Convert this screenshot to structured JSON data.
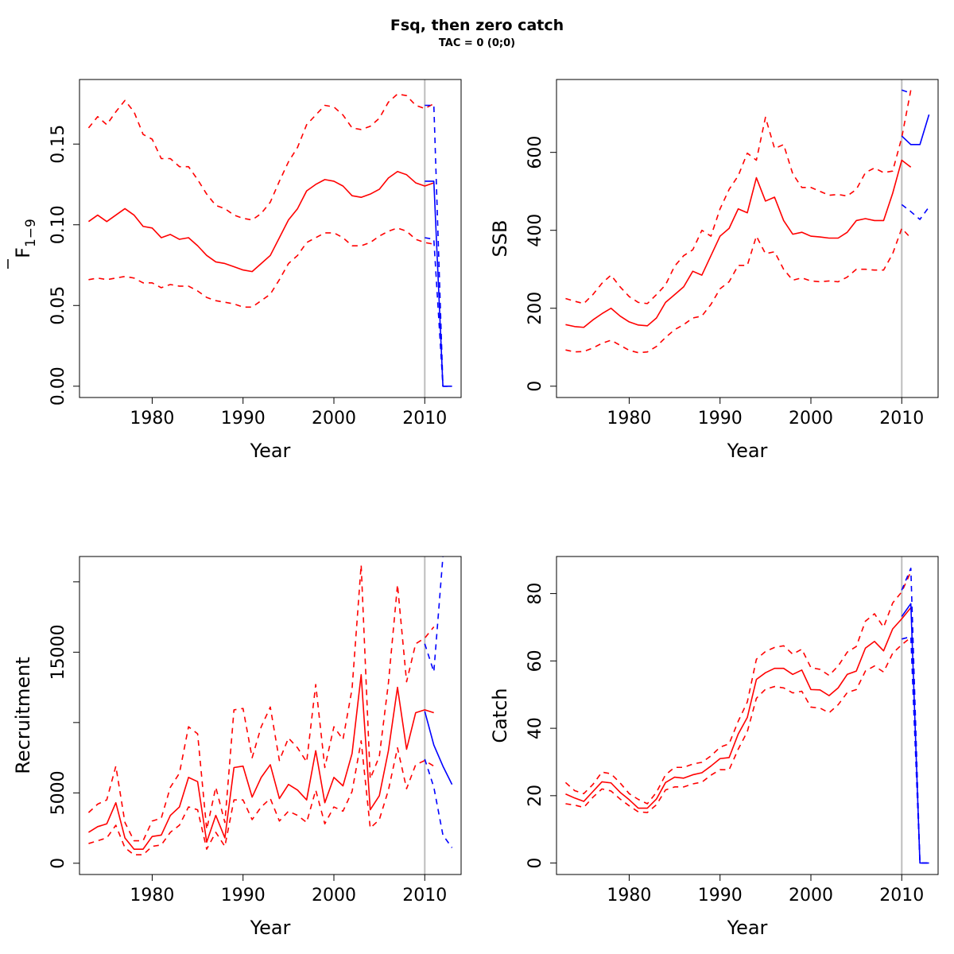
{
  "figure": {
    "title": "Fsq, then zero catch",
    "subtitle": "TAC = 0 (0;0)"
  },
  "colors": {
    "estimate": "#ff0000",
    "forecast": "#0000ff",
    "reference_line": "#bebebe"
  },
  "chart_data": [
    {
      "type": "line",
      "id": "fbar",
      "xlabel": "Year",
      "ylabel_main": "F",
      "ylabel_sub": "1−9",
      "ylabel_bar": true,
      "xlim": [
        1972,
        2014
      ],
      "ylim": [
        -0.007,
        0.19
      ],
      "xticks": [
        1980,
        1990,
        2000,
        2010
      ],
      "yticks": [
        0.0,
        0.05,
        0.1,
        0.15
      ],
      "ytick_labels": [
        "0.00",
        "0.05",
        "0.10",
        "0.15"
      ],
      "vline_x": 2010,
      "estimate": {
        "x": [
          1973,
          1974,
          1975,
          1976,
          1977,
          1978,
          1979,
          1980,
          1981,
          1982,
          1983,
          1984,
          1985,
          1986,
          1987,
          1988,
          1989,
          1990,
          1991,
          1992,
          1993,
          1994,
          1995,
          1996,
          1997,
          1998,
          1999,
          2000,
          2001,
          2002,
          2003,
          2004,
          2005,
          2006,
          2007,
          2008,
          2009,
          2010,
          2011
        ],
        "mid": [
          0.102,
          0.106,
          0.102,
          0.106,
          0.11,
          0.106,
          0.099,
          0.098,
          0.092,
          0.094,
          0.091,
          0.092,
          0.087,
          0.081,
          0.077,
          0.076,
          0.074,
          0.072,
          0.071,
          0.076,
          0.081,
          0.092,
          0.103,
          0.11,
          0.121,
          0.125,
          0.128,
          0.127,
          0.124,
          0.118,
          0.117,
          0.119,
          0.122,
          0.129,
          0.133,
          0.131,
          0.126,
          0.124,
          0.126
        ],
        "low": [
          0.066,
          0.067,
          0.066,
          0.067,
          0.068,
          0.067,
          0.064,
          0.064,
          0.061,
          0.063,
          0.062,
          0.062,
          0.059,
          0.055,
          0.053,
          0.052,
          0.051,
          0.049,
          0.049,
          0.053,
          0.057,
          0.066,
          0.076,
          0.081,
          0.089,
          0.092,
          0.095,
          0.095,
          0.092,
          0.087,
          0.087,
          0.089,
          0.093,
          0.096,
          0.098,
          0.096,
          0.091,
          0.089,
          0.088
        ],
        "high": [
          0.16,
          0.167,
          0.162,
          0.17,
          0.177,
          0.17,
          0.156,
          0.153,
          0.141,
          0.141,
          0.136,
          0.136,
          0.128,
          0.119,
          0.112,
          0.11,
          0.106,
          0.104,
          0.103,
          0.107,
          0.114,
          0.127,
          0.139,
          0.148,
          0.162,
          0.168,
          0.174,
          0.173,
          0.168,
          0.16,
          0.159,
          0.161,
          0.166,
          0.176,
          0.181,
          0.18,
          0.174,
          0.172,
          0.175
        ]
      },
      "forecast": {
        "x": [
          2010,
          2011,
          2012,
          2013
        ],
        "mid": [
          0.127,
          0.127,
          0.0,
          0.0
        ],
        "low": [
          0.092,
          0.091,
          0.0,
          0.0
        ],
        "high": [
          0.174,
          0.174,
          0.0,
          0.0
        ]
      }
    },
    {
      "type": "line",
      "id": "ssb",
      "xlabel": "Year",
      "ylabel_main": "SSB",
      "ylabel_sub": "",
      "ylabel_bar": false,
      "xlim": [
        1972,
        2014
      ],
      "ylim": [
        -29,
        787
      ],
      "xticks": [
        1980,
        1990,
        2000,
        2010
      ],
      "yticks": [
        0,
        200,
        400,
        600
      ],
      "ytick_labels": [
        "0",
        "200",
        "400",
        "600"
      ],
      "vline_x": 2010,
      "estimate": {
        "x": [
          1973,
          1974,
          1975,
          1976,
          1977,
          1978,
          1979,
          1980,
          1981,
          1982,
          1983,
          1984,
          1985,
          1986,
          1987,
          1988,
          1989,
          1990,
          1991,
          1992,
          1993,
          1994,
          1995,
          1996,
          1997,
          1998,
          1999,
          2000,
          2001,
          2002,
          2003,
          2004,
          2005,
          2006,
          2007,
          2008,
          2009,
          2010,
          2011
        ],
        "mid": [
          158,
          153,
          151,
          170,
          186,
          200,
          180,
          165,
          157,
          155,
          175,
          215,
          235,
          255,
          295,
          285,
          335,
          385,
          405,
          455,
          445,
          535,
          475,
          485,
          425,
          390,
          395,
          385,
          383,
          380,
          380,
          395,
          425,
          430,
          425,
          425,
          495,
          580,
          562
        ],
        "low": [
          93,
          88,
          89,
          98,
          110,
          118,
          105,
          92,
          86,
          88,
          102,
          125,
          145,
          158,
          175,
          180,
          210,
          250,
          268,
          310,
          310,
          385,
          340,
          345,
          300,
          272,
          278,
          270,
          268,
          270,
          268,
          280,
          300,
          300,
          298,
          298,
          340,
          405,
          380
        ],
        "high": [
          225,
          218,
          212,
          235,
          264,
          285,
          255,
          230,
          215,
          212,
          235,
          260,
          308,
          335,
          350,
          400,
          385,
          455,
          505,
          540,
          598,
          580,
          690,
          610,
          620,
          545,
          510,
          510,
          500,
          490,
          492,
          488,
          505,
          548,
          560,
          548,
          552,
          638,
          760
        ]
      },
      "forecast": {
        "x": [
          2010,
          2011,
          2012,
          2013
        ],
        "mid": [
          642,
          620,
          620,
          697
        ],
        "low": [
          466,
          448,
          428,
          460
        ],
        "high": [
          760,
          752,
          null,
          null
        ]
      }
    },
    {
      "type": "line",
      "id": "recruitment",
      "xlabel": "Year",
      "ylabel_main": "Recruitment",
      "ylabel_sub": "",
      "ylabel_bar": false,
      "xlim": [
        1972,
        2014
      ],
      "ylim": [
        -800,
        21800
      ],
      "xticks": [
        1980,
        1990,
        2000,
        2010
      ],
      "yticks": [
        0,
        5000,
        10000,
        15000,
        20000
      ],
      "ytick_labels": [
        "0",
        "5000",
        "",
        "15000",
        ""
      ],
      "vline_x": 2010,
      "estimate": {
        "x": [
          1973,
          1974,
          1975,
          1976,
          1977,
          1978,
          1979,
          1980,
          1981,
          1982,
          1983,
          1984,
          1985,
          1986,
          1987,
          1988,
          1989,
          1990,
          1991,
          1992,
          1993,
          1994,
          1995,
          1996,
          1997,
          1998,
          1999,
          2000,
          2001,
          2002,
          2003,
          2004,
          2005,
          2006,
          2007,
          2008,
          2009,
          2010,
          2011
        ],
        "mid": [
          2200,
          2600,
          2800,
          4300,
          1800,
          1000,
          1000,
          1900,
          2000,
          3400,
          4000,
          6100,
          5800,
          1500,
          3400,
          1800,
          6800,
          6900,
          4700,
          6100,
          7000,
          4600,
          5600,
          5200,
          4500,
          8000,
          4300,
          6100,
          5500,
          7800,
          13400,
          3800,
          4800,
          8000,
          12500,
          8100,
          10700,
          10900,
          10700
        ],
        "low": [
          1400,
          1600,
          1800,
          2700,
          1100,
          600,
          600,
          1200,
          1300,
          2200,
          2700,
          4000,
          3800,
          1000,
          2200,
          1200,
          4500,
          4500,
          3100,
          4000,
          4600,
          3000,
          3700,
          3400,
          2900,
          5200,
          2800,
          4000,
          3700,
          5100,
          8700,
          2500,
          3100,
          5200,
          8200,
          5300,
          7000,
          7300,
          6900
        ],
        "high": [
          3600,
          4200,
          4500,
          6900,
          2900,
          1600,
          1600,
          3000,
          3200,
          5400,
          6400,
          9700,
          9200,
          2400,
          5400,
          2900,
          10900,
          11000,
          7500,
          9700,
          11100,
          7300,
          8900,
          8200,
          7200,
          12700,
          6800,
          9700,
          8800,
          12400,
          21200,
          6000,
          7600,
          12800,
          19800,
          12900,
          15600,
          16000,
          16800
        ]
      },
      "forecast": {
        "x": [
          2010,
          2011,
          2012,
          2013
        ],
        "mid": [
          10800,
          8400,
          6900,
          5600
        ],
        "low": [
          7400,
          5400,
          2000,
          1100
        ],
        "high": [
          15600,
          13600,
          21800,
          null
        ]
      }
    },
    {
      "type": "line",
      "id": "catch",
      "xlabel": "Year",
      "ylabel_main": "Catch",
      "ylabel_sub": "",
      "ylabel_bar": false,
      "xlim": [
        1972,
        2014
      ],
      "ylim": [
        -3.4,
        91
      ],
      "xticks": [
        1980,
        1990,
        2000,
        2010
      ],
      "yticks": [
        0,
        20,
        40,
        60,
        80
      ],
      "ytick_labels": [
        "0",
        "20",
        "40",
        "60",
        "80"
      ],
      "vline_x": 2010,
      "estimate": {
        "x": [
          1973,
          1974,
          1975,
          1976,
          1977,
          1978,
          1979,
          1980,
          1981,
          1982,
          1983,
          1984,
          1985,
          1986,
          1987,
          1988,
          1989,
          1990,
          1991,
          1992,
          1993,
          1994,
          1995,
          1996,
          1997,
          1998,
          1999,
          2000,
          2001,
          2002,
          2003,
          2004,
          2005,
          2006,
          2007,
          2008,
          2009,
          2010,
          2011
        ],
        "mid": [
          20.5,
          19.3,
          18.3,
          21.2,
          24.1,
          23.8,
          21.0,
          18.8,
          16.3,
          16.3,
          19.0,
          23.9,
          25.5,
          25.2,
          26.2,
          26.8,
          28.8,
          31.0,
          31.3,
          38.3,
          43.2,
          54.5,
          56.5,
          57.8,
          57.8,
          56.0,
          57.3,
          51.5,
          51.4,
          49.7,
          52.0,
          56.0,
          57.0,
          63.8,
          65.8,
          63.0,
          69.5,
          72.5,
          75.8
        ],
        "low": [
          17.6,
          17.2,
          16.5,
          19.5,
          22.0,
          21.4,
          19.0,
          17.0,
          15.2,
          15.0,
          17.3,
          21.7,
          22.6,
          22.6,
          23.5,
          24.0,
          26.1,
          27.7,
          27.7,
          33.8,
          39.0,
          48.9,
          51.6,
          52.4,
          52.0,
          50.5,
          51.0,
          46.3,
          46.0,
          44.6,
          47.0,
          50.6,
          51.5,
          57.0,
          58.5,
          56.7,
          62.3,
          64.8,
          67.0
        ],
        "high": [
          23.9,
          21.5,
          20.6,
          23.3,
          27.0,
          26.5,
          23.8,
          20.6,
          18.9,
          17.6,
          21.0,
          26.2,
          28.4,
          28.4,
          29.4,
          29.9,
          31.8,
          34.4,
          35.4,
          42.1,
          47.8,
          60.5,
          62.8,
          64.0,
          64.5,
          62.0,
          63.5,
          58.0,
          57.5,
          55.7,
          58.5,
          62.6,
          64.3,
          71.8,
          74.0,
          70.0,
          77.2,
          80.5,
          86.5
        ]
      },
      "forecast": {
        "x": [
          2010,
          2011,
          2012,
          2013
        ],
        "mid": [
          73.2,
          77.0,
          0,
          0
        ],
        "low": [
          66.5,
          67.2,
          0,
          0
        ],
        "high": [
          81.0,
          87.5,
          0,
          0
        ]
      }
    }
  ]
}
